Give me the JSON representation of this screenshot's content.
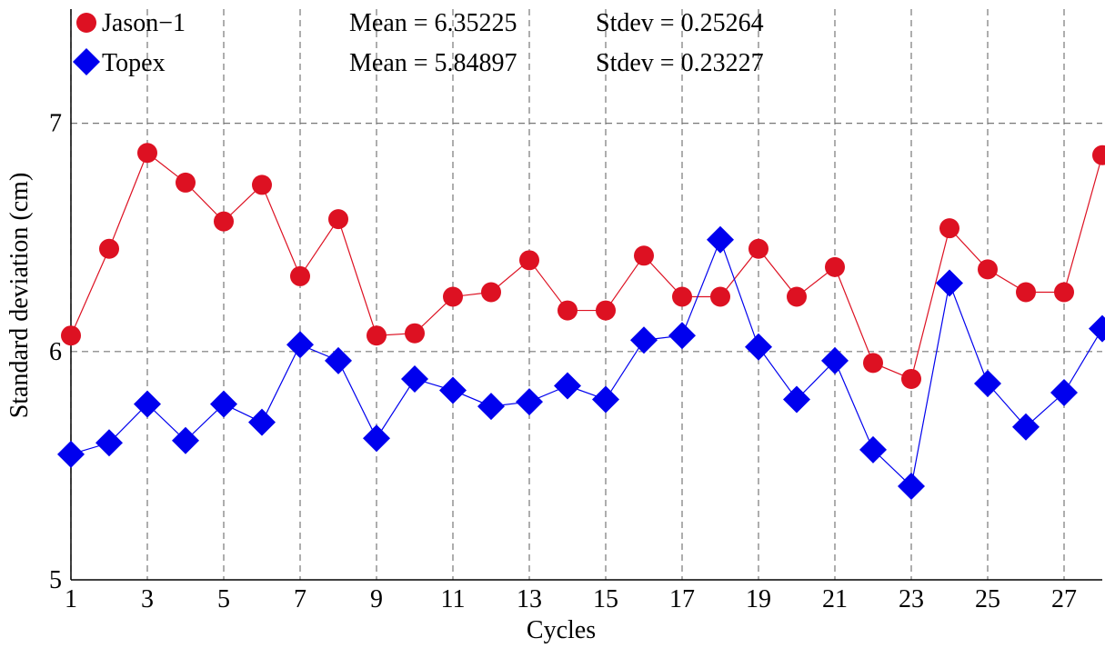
{
  "chart_data": {
    "type": "line",
    "title": "",
    "xlabel": "Cycles",
    "ylabel": "Standard deviation (cm)",
    "xlim": [
      1,
      28
    ],
    "ylim": [
      5,
      7.5
    ],
    "grid": true,
    "legend_position": "top-left",
    "x_tick_labels": [
      "1",
      "3",
      "5",
      "7",
      "9",
      "11",
      "13",
      "15",
      "17",
      "19",
      "21",
      "23",
      "25",
      "27"
    ],
    "y_tick_labels": [
      "5",
      "6",
      "7"
    ],
    "x": [
      1,
      2,
      3,
      4,
      5,
      6,
      7,
      8,
      9,
      10,
      11,
      12,
      13,
      14,
      15,
      16,
      17,
      18,
      19,
      20,
      21,
      22,
      23,
      24,
      25,
      26,
      27,
      28
    ],
    "series": [
      {
        "name": "Jason−1",
        "color": "#dd1122",
        "marker": "circle",
        "mean_text": "Mean = 6.35225",
        "stdev_text": "Stdev = 0.25264",
        "values": [
          6.07,
          6.45,
          6.87,
          6.74,
          6.57,
          6.73,
          6.33,
          6.58,
          6.07,
          6.08,
          6.24,
          6.26,
          6.4,
          6.18,
          6.18,
          6.42,
          6.24,
          6.24,
          6.45,
          6.24,
          6.37,
          5.95,
          5.88,
          6.54,
          6.36,
          6.26,
          6.26,
          6.86
        ]
      },
      {
        "name": "Topex",
        "color": "#0000ee",
        "marker": "diamond",
        "mean_text": "Mean = 5.84897",
        "stdev_text": "Stdev = 0.23227",
        "values": [
          5.55,
          5.6,
          5.77,
          5.61,
          5.77,
          5.69,
          6.03,
          5.96,
          5.62,
          5.88,
          5.83,
          5.76,
          5.78,
          5.85,
          5.79,
          6.05,
          6.07,
          6.49,
          6.02,
          5.79,
          5.96,
          5.57,
          5.41,
          6.3,
          5.86,
          5.67,
          5.82,
          6.1
        ]
      }
    ]
  }
}
